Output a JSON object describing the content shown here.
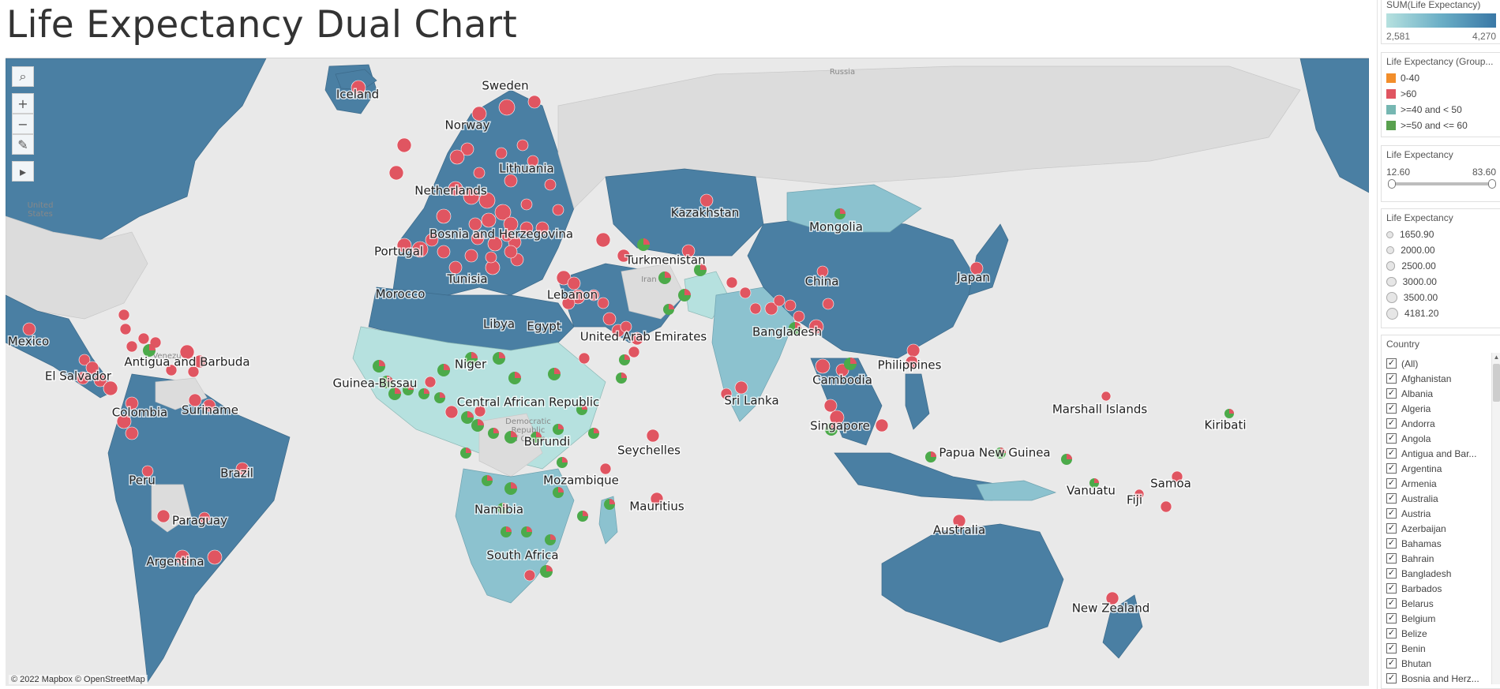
{
  "title": "Life Expectancy Dual Chart",
  "colors": {
    "ocean": "#e9e9e9",
    "land_no_data": "#dcdcdc",
    "fill_low": "#b6e1df",
    "fill_mid": "#8cc2cf",
    "fill_high": "#4a7fa3",
    "dot_red": "#e05561",
    "dot_green": "#4caa4a",
    "dot_orange": "#f28e2b",
    "dot_teal": "#76b7b2"
  },
  "map": {
    "attribution": "© 2022 Mapbox © OpenStreetMap",
    "base_labels": [
      "Russia",
      "Iran",
      "United States",
      "Venezuela",
      "Democratic Republic of Congo"
    ],
    "toolbar": [
      {
        "name": "search-icon",
        "glyph": "⌕"
      },
      {
        "name": "zoom-in-icon",
        "glyph": "+"
      },
      {
        "name": "zoom-out-icon",
        "glyph": "−"
      },
      {
        "name": "pin-icon",
        "glyph": "✎"
      },
      {
        "name": "play-icon",
        "glyph": "▸"
      }
    ],
    "country_labels": [
      "Iceland",
      "Sweden",
      "Norway",
      "Lithuania",
      "Netherlands",
      "Bosnia and Herzegovina",
      "Portugal",
      "Tunisia",
      "Morocco",
      "Libya",
      "Egypt",
      "Lebanon",
      "Turkmenistan",
      "Kazakhstan",
      "Mongolia",
      "China",
      "Japan",
      "United Arab Emirates",
      "Bangladesh",
      "Philippines",
      "Cambodia",
      "Sri Lanka",
      "Singapore",
      "Papua New Guinea",
      "Marshall Islands",
      "Kiribati",
      "Samoa",
      "Vanuatu",
      "Fiji",
      "Australia",
      "New Zealand",
      "Mexico",
      "Antigua and Barbuda",
      "El Salvador",
      "Guinea-Bissau",
      "Niger",
      "Central African Republic",
      "Burundi",
      "Seychelles",
      "Mozambique",
      "Mauritius",
      "Namibia",
      "South Africa",
      "Colombia",
      "Suriname",
      "Brazil",
      "Peru",
      "Paraguay",
      "Argentina"
    ]
  },
  "legend_color": {
    "title": "SUM(Life Expectancy)",
    "min": "2,581",
    "max": "4,270"
  },
  "legend_group": {
    "title": "Life Expectancy (Group...",
    "items": [
      {
        "label": "0-40",
        "color": "#f28e2b"
      },
      {
        "label": ">60",
        "color": "#e05561"
      },
      {
        "label": ">=40 and < 50",
        "color": "#76b7b2"
      },
      {
        "label": ">=50 and <= 60",
        "color": "#59a14f"
      }
    ]
  },
  "filter_range": {
    "title": "Life Expectancy",
    "min": "12.60",
    "max": "83.60"
  },
  "legend_size": {
    "title": "Life Expectancy",
    "items": [
      "1650.90",
      "2000.00",
      "2500.00",
      "3000.00",
      "3500.00",
      "4181.20"
    ]
  },
  "country_filter": {
    "title": "Country",
    "items": [
      "(All)",
      "Afghanistan",
      "Albania",
      "Algeria",
      "Andorra",
      "Angola",
      "Antigua and Bar...",
      "Argentina",
      "Armenia",
      "Australia",
      "Austria",
      "Azerbaijan",
      "Bahamas",
      "Bahrain",
      "Bangladesh",
      "Barbados",
      "Belarus",
      "Belgium",
      "Belize",
      "Benin",
      "Bhutan",
      "Bosnia and Herz..."
    ]
  }
}
